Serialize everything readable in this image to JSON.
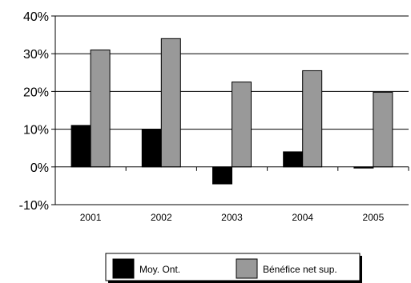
{
  "chart_data": {
    "type": "bar",
    "title": "",
    "xlabel": "",
    "ylabel": "",
    "categories": [
      "2001",
      "2002",
      "2003",
      "2004",
      "2005"
    ],
    "series": [
      {
        "name": "Moy. Ont.",
        "color": "#000000",
        "values": [
          11,
          10,
          -4.5,
          4,
          -0.3
        ]
      },
      {
        "name": "Bénéfice net sup.",
        "color": "#999999",
        "values": [
          31,
          34,
          22.5,
          25.5,
          19.8
        ]
      }
    ],
    "ylim": [
      -10,
      40
    ],
    "yticks": [
      -10,
      0,
      10,
      20,
      30,
      40
    ],
    "ytick_labels": [
      "-10%",
      "0%",
      "10%",
      "20%",
      "30%",
      "40%"
    ],
    "grid": true,
    "legend_position": "bottom"
  }
}
